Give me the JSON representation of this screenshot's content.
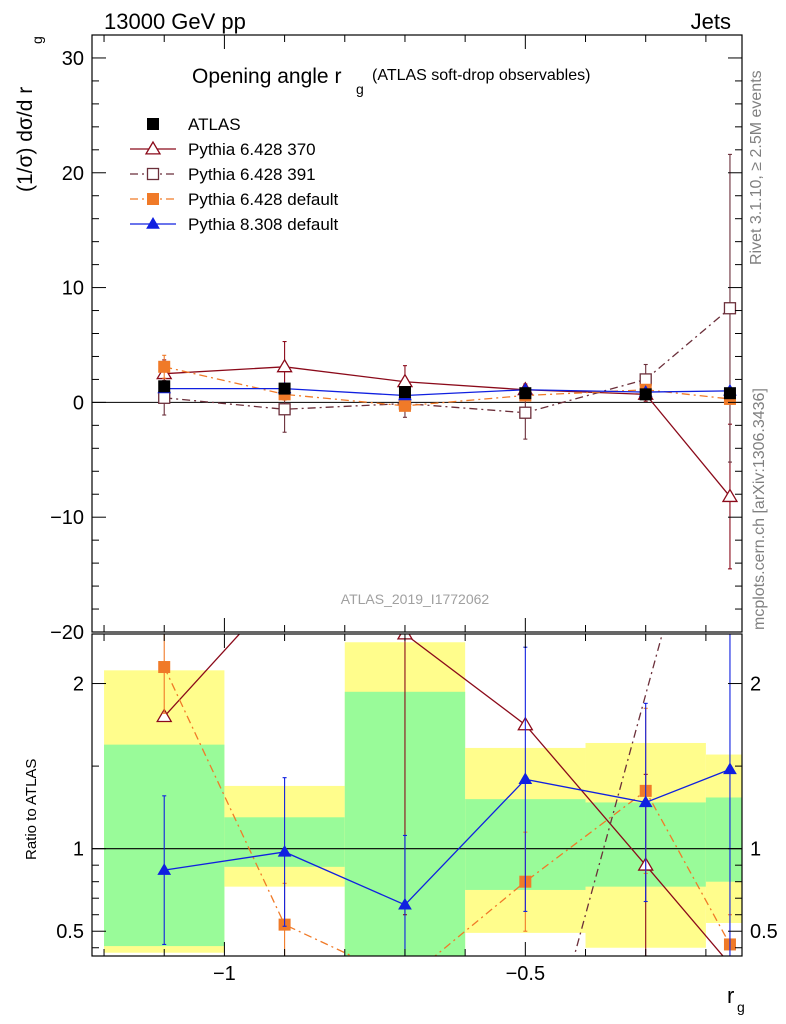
{
  "header": {
    "energy": "13000 GeV pp",
    "process": "Jets",
    "title_main": "Opening angle r",
    "title_sub": "g",
    "title_note": "(ATLAS soft-drop observables)",
    "analysis_id": "ATLAS_2019_I1772062",
    "rivet_label": "Rivet 3.1.10, ≥ 2.5M events",
    "mcplots_label": "mcplots.cern.ch [arXiv:1306.3436]"
  },
  "chart_data": [
    {
      "type": "line",
      "ylabel": "(1/σ) dσ/d r",
      "ylabel_sub": "g",
      "ylim": [
        -20,
        32
      ],
      "yticks": [
        -20,
        -10,
        0,
        10,
        20,
        30
      ],
      "xlim": [
        -1.22,
        -0.14
      ],
      "x": [
        -1.1,
        -0.9,
        -0.7,
        -0.5,
        -0.3,
        -0.16
      ],
      "legend": {
        "placement": "top-left"
      },
      "series": [
        {
          "name": "ATLAS",
          "color": "#000000",
          "marker": "square-filled",
          "line": "none",
          "values": [
            1.4,
            1.2,
            0.9,
            0.8,
            0.7,
            0.8
          ],
          "errors": [
            0.3,
            0.2,
            0.2,
            0.1,
            0.1,
            0.1
          ]
        },
        {
          "name": "Pythia 6.428 370",
          "color": "#8b0a1a",
          "marker": "triangle-open",
          "line": "solid",
          "values": [
            2.5,
            3.1,
            1.8,
            1.1,
            0.7,
            -8.2
          ],
          "errors": [
            1.2,
            2.2,
            1.4,
            0.5,
            0.6,
            6.3
          ]
        },
        {
          "name": "Pythia 6.428 391",
          "color": "#6b2f3a",
          "marker": "square-open",
          "line": "dashdot",
          "values": [
            0.4,
            -0.6,
            -0.1,
            -0.9,
            2.0,
            8.2
          ],
          "errors": [
            1.5,
            2.0,
            1.2,
            2.3,
            1.3,
            13.4
          ]
        },
        {
          "name": "Pythia 6.428 default",
          "color": "#f07a28",
          "marker": "square-filled",
          "line": "dashdot",
          "values": [
            3.1,
            0.7,
            -0.3,
            0.6,
            1.1,
            0.3
          ],
          "errors": [
            1.0,
            0.5,
            0.4,
            0.3,
            0.4,
            0.4
          ]
        },
        {
          "name": "Pythia 8.308 default",
          "color": "#1020e0",
          "marker": "triangle-filled",
          "line": "solid",
          "values": [
            1.2,
            1.2,
            0.6,
            1.1,
            0.9,
            1.0
          ],
          "errors": [
            0.3,
            0.4,
            0.3,
            0.2,
            0.2,
            0.2
          ]
        }
      ]
    },
    {
      "type": "line",
      "ylabel": "Ratio to ATLAS",
      "xlabel": "r",
      "xlabel_sub": "g",
      "ylim": [
        0.35,
        2.3
      ],
      "yticks": [
        0.5,
        1,
        2
      ],
      "xticks": [
        -1,
        -0.5
      ],
      "xtick_labels": [
        "−1",
        "−0.5"
      ],
      "xlim": [
        -1.22,
        -0.14
      ],
      "bands": {
        "edges": [
          -1.2,
          -1.0,
          -0.8,
          -0.6,
          -0.4,
          -0.2,
          -0.12
        ],
        "green_band_color": "#99fb99",
        "yellow_band_color": "#fffd8c",
        "green_lo": [
          0.41,
          0.89,
          0.35,
          0.75,
          0.77,
          0.8
        ],
        "green_hi": [
          1.63,
          1.19,
          1.95,
          1.3,
          1.28,
          1.31
        ],
        "yellow_lo": [
          0.37,
          0.77,
          0.35,
          0.49,
          0.4,
          0.55
        ],
        "yellow_hi": [
          2.08,
          1.38,
          2.25,
          1.61,
          1.64,
          1.57
        ]
      },
      "series": [
        {
          "name": "Pythia 6.428 370",
          "color": "#8b0a1a",
          "marker": "triangle-open",
          "line": "solid",
          "x": [
            -1.1,
            -0.9,
            -0.7,
            -0.5,
            -0.3,
            -0.16
          ],
          "values": [
            1.8,
            2.6,
            2.3,
            1.75,
            0.9,
            0.3
          ],
          "errors": [
            null,
            null,
            1.7,
            0.0,
            0.55,
            null
          ]
        },
        {
          "name": "Pythia 6.428 391",
          "color": "#6b2f3a",
          "marker": "square-open",
          "line": "dashdot",
          "x": [
            -0.43,
            -0.22
          ],
          "values": [
            0.2,
            3.0
          ],
          "errors": [
            null,
            null
          ]
        },
        {
          "name": "Pythia 6.428 default",
          "color": "#f07a28",
          "marker": "square-filled",
          "line": "dashdot",
          "x": [
            -1.1,
            -0.9,
            -0.7,
            -0.5,
            -0.3,
            -0.16
          ],
          "values": [
            2.1,
            0.54,
            0.2,
            0.8,
            1.35,
            0.42
          ],
          "errors": [
            0.28,
            0.25,
            null,
            0.3,
            0.5,
            0.18
          ]
        },
        {
          "name": "Pythia 8.308 default",
          "color": "#1020e0",
          "marker": "triangle-filled",
          "line": "solid",
          "x": [
            -1.1,
            -0.9,
            -0.7,
            -0.5,
            -0.3,
            -0.16
          ],
          "values": [
            0.87,
            0.98,
            0.66,
            1.42,
            1.28,
            1.48
          ],
          "errors": [
            0.45,
            0.45,
            0.42,
            0.8,
            0.6,
            1.5
          ]
        }
      ]
    }
  ]
}
